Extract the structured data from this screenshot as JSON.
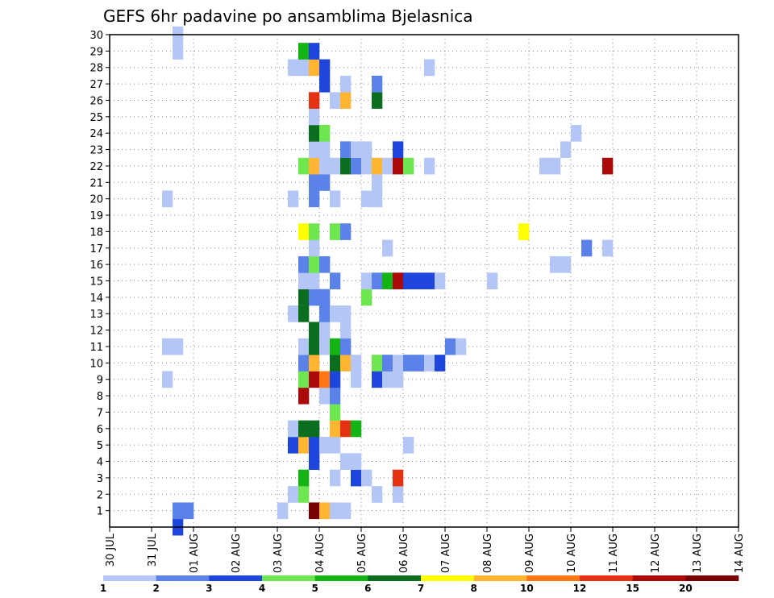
{
  "chart_data": {
    "type": "heatmap",
    "title": "GEFS 6hr padavine po ansamblima Bjelasnica",
    "xlabel": "",
    "ylabel": "",
    "x_tick_labels": [
      "30 JUL",
      "31 JUL",
      "01 AUG",
      "02 AUG",
      "03 AUG",
      "04 AUG",
      "05 AUG",
      "06 AUG",
      "07 AUG",
      "08 AUG",
      "09 AUG",
      "10 AUG",
      "11 AUG",
      "12 AUG",
      "13 AUG",
      "14 AUG"
    ],
    "x_range_days": [
      0,
      15
    ],
    "steps_per_day": 4,
    "y_tick_labels": [
      "1",
      "2",
      "3",
      "4",
      "5",
      "6",
      "7",
      "8",
      "9",
      "10",
      "11",
      "12",
      "13",
      "14",
      "15",
      "16",
      "17",
      "18",
      "19",
      "20",
      "21",
      "22",
      "23",
      "24",
      "25",
      "26",
      "27",
      "28",
      "29",
      "30"
    ],
    "y_range": [
      0,
      30
    ],
    "grid": true,
    "legend": {
      "placement": "bottom",
      "labels": [
        "1",
        "2",
        "3",
        "4",
        "5",
        "6",
        "7",
        "8",
        "10",
        "12",
        "15",
        "20"
      ],
      "colors": [
        "#b4c6f5",
        "#5a82e8",
        "#1e46dc",
        "#6ee650",
        "#14b414",
        "#0a6e1e",
        "#ffff00",
        "#ffb432",
        "#ff7814",
        "#e63214",
        "#aa0a0a",
        "#780000"
      ]
    },
    "cells": [
      [
        6,
        0,
        2
      ],
      [
        6,
        1,
        1
      ],
      [
        7,
        1,
        1
      ],
      [
        16,
        1,
        0
      ],
      [
        19,
        1,
        11
      ],
      [
        20,
        1,
        7
      ],
      [
        21,
        1,
        0
      ],
      [
        22,
        1,
        0
      ],
      [
        17,
        2,
        0
      ],
      [
        18,
        2,
        3
      ],
      [
        25,
        2,
        0
      ],
      [
        27,
        2,
        0
      ],
      [
        18,
        3,
        4
      ],
      [
        21,
        3,
        0
      ],
      [
        23,
        3,
        2
      ],
      [
        24,
        3,
        0
      ],
      [
        27,
        3,
        9
      ],
      [
        19,
        4,
        2
      ],
      [
        22,
        4,
        0
      ],
      [
        23,
        4,
        0
      ],
      [
        17,
        5,
        2
      ],
      [
        18,
        5,
        7
      ],
      [
        19,
        5,
        2
      ],
      [
        20,
        5,
        0
      ],
      [
        21,
        5,
        0
      ],
      [
        28,
        5,
        0
      ],
      [
        17,
        6,
        0
      ],
      [
        18,
        6,
        5
      ],
      [
        19,
        6,
        5
      ],
      [
        21,
        6,
        7
      ],
      [
        22,
        6,
        9
      ],
      [
        23,
        6,
        4
      ],
      [
        21,
        7,
        3
      ],
      [
        18,
        8,
        10
      ],
      [
        20,
        8,
        0
      ],
      [
        21,
        8,
        1
      ],
      [
        5,
        9,
        0
      ],
      [
        18,
        9,
        3
      ],
      [
        19,
        9,
        10
      ],
      [
        20,
        9,
        8
      ],
      [
        21,
        9,
        2
      ],
      [
        23,
        9,
        0
      ],
      [
        25,
        9,
        2
      ],
      [
        26,
        9,
        0
      ],
      [
        27,
        9,
        0
      ],
      [
        18,
        10,
        1
      ],
      [
        19,
        10,
        7
      ],
      [
        21,
        10,
        5
      ],
      [
        22,
        10,
        7
      ],
      [
        23,
        10,
        0
      ],
      [
        25,
        10,
        3
      ],
      [
        26,
        10,
        1
      ],
      [
        27,
        10,
        0
      ],
      [
        28,
        10,
        1
      ],
      [
        29,
        10,
        1
      ],
      [
        30,
        10,
        0
      ],
      [
        31,
        10,
        2
      ],
      [
        5,
        11,
        0
      ],
      [
        6,
        11,
        0
      ],
      [
        18,
        11,
        0
      ],
      [
        19,
        11,
        5
      ],
      [
        20,
        11,
        0
      ],
      [
        21,
        11,
        4
      ],
      [
        22,
        11,
        1
      ],
      [
        32,
        11,
        1
      ],
      [
        33,
        11,
        0
      ],
      [
        19,
        12,
        5
      ],
      [
        20,
        12,
        0
      ],
      [
        22,
        12,
        0
      ],
      [
        17,
        13,
        0
      ],
      [
        18,
        13,
        5
      ],
      [
        20,
        13,
        1
      ],
      [
        21,
        13,
        0
      ],
      [
        22,
        13,
        0
      ],
      [
        18,
        14,
        5
      ],
      [
        19,
        14,
        1
      ],
      [
        20,
        14,
        1
      ],
      [
        24,
        14,
        3
      ],
      [
        18,
        15,
        0
      ],
      [
        19,
        15,
        0
      ],
      [
        21,
        15,
        1
      ],
      [
        24,
        15,
        0
      ],
      [
        25,
        15,
        1
      ],
      [
        26,
        15,
        4
      ],
      [
        27,
        15,
        10
      ],
      [
        28,
        15,
        2
      ],
      [
        29,
        15,
        2
      ],
      [
        30,
        15,
        2
      ],
      [
        31,
        15,
        0
      ],
      [
        36,
        15,
        0
      ],
      [
        18,
        16,
        1
      ],
      [
        19,
        16,
        3
      ],
      [
        20,
        16,
        1
      ],
      [
        42,
        16,
        0
      ],
      [
        43,
        16,
        0
      ],
      [
        19,
        17,
        0
      ],
      [
        26,
        17,
        0
      ],
      [
        45,
        17,
        1
      ],
      [
        47,
        17,
        0
      ],
      [
        18,
        18,
        6
      ],
      [
        19,
        18,
        3
      ],
      [
        21,
        18,
        3
      ],
      [
        22,
        18,
        1
      ],
      [
        39,
        18,
        6
      ],
      [
        5,
        20,
        0
      ],
      [
        17,
        20,
        0
      ],
      [
        19,
        20,
        1
      ],
      [
        21,
        20,
        0
      ],
      [
        24,
        20,
        0
      ],
      [
        25,
        20,
        0
      ],
      [
        19,
        21,
        1
      ],
      [
        20,
        21,
        1
      ],
      [
        25,
        21,
        0
      ],
      [
        18,
        22,
        3
      ],
      [
        19,
        22,
        7
      ],
      [
        20,
        22,
        0
      ],
      [
        21,
        22,
        0
      ],
      [
        22,
        22,
        5
      ],
      [
        23,
        22,
        1
      ],
      [
        24,
        22,
        0
      ],
      [
        25,
        22,
        7
      ],
      [
        26,
        22,
        0
      ],
      [
        27,
        22,
        10
      ],
      [
        28,
        22,
        3
      ],
      [
        30,
        22,
        0
      ],
      [
        41,
        22,
        0
      ],
      [
        42,
        22,
        0
      ],
      [
        47,
        22,
        10
      ],
      [
        19,
        23,
        0
      ],
      [
        20,
        23,
        0
      ],
      [
        22,
        23,
        1
      ],
      [
        23,
        23,
        0
      ],
      [
        24,
        23,
        0
      ],
      [
        27,
        23,
        2
      ],
      [
        43,
        23,
        0
      ],
      [
        19,
        24,
        5
      ],
      [
        20,
        24,
        3
      ],
      [
        44,
        24,
        0
      ],
      [
        19,
        25,
        0
      ],
      [
        19,
        26,
        9
      ],
      [
        21,
        26,
        0
      ],
      [
        22,
        26,
        7
      ],
      [
        25,
        26,
        5
      ],
      [
        20,
        27,
        2
      ],
      [
        22,
        27,
        0
      ],
      [
        25,
        27,
        1
      ],
      [
        17,
        28,
        0
      ],
      [
        18,
        28,
        0
      ],
      [
        19,
        28,
        7
      ],
      [
        20,
        28,
        2
      ],
      [
        30,
        28,
        0
      ],
      [
        6,
        29,
        0
      ],
      [
        18,
        29,
        4
      ],
      [
        19,
        29,
        2
      ],
      [
        6,
        30,
        0
      ]
    ]
  }
}
